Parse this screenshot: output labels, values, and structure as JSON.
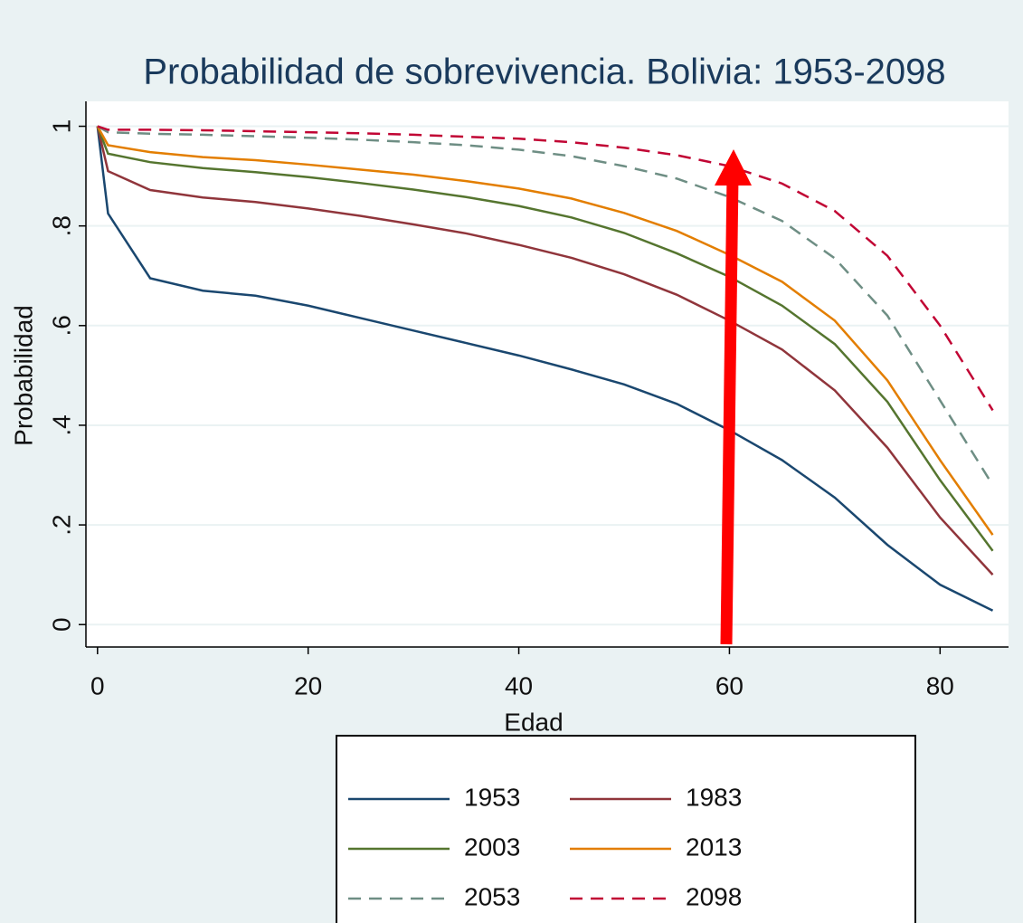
{
  "chart_data": {
    "type": "line",
    "title": "Probabilidad de sobrevivencia. Bolivia: 1953-2098",
    "x_label": "Edad",
    "y_label": "Probabilidad",
    "x": [
      0,
      1,
      5,
      10,
      15,
      20,
      25,
      30,
      35,
      40,
      45,
      50,
      55,
      60,
      65,
      70,
      75,
      80,
      85
    ],
    "series": [
      {
        "name": "1953",
        "color": "#1a476f",
        "style": "solid",
        "values": [
          1,
          0.825,
          0.695,
          0.67,
          0.66,
          0.64,
          0.615,
          0.59,
          0.565,
          0.54,
          0.512,
          0.482,
          0.443,
          0.39,
          0.33,
          0.255,
          0.16,
          0.08,
          0.028
        ]
      },
      {
        "name": "1983",
        "color": "#90353b",
        "style": "solid",
        "values": [
          1,
          0.91,
          0.872,
          0.857,
          0.848,
          0.835,
          0.82,
          0.803,
          0.785,
          0.762,
          0.736,
          0.703,
          0.662,
          0.61,
          0.552,
          0.47,
          0.355,
          0.215,
          0.1
        ]
      },
      {
        "name": "2003",
        "color": "#55752f",
        "style": "solid",
        "values": [
          1,
          0.945,
          0.928,
          0.916,
          0.908,
          0.898,
          0.886,
          0.873,
          0.858,
          0.84,
          0.817,
          0.786,
          0.745,
          0.698,
          0.64,
          0.563,
          0.447,
          0.29,
          0.148
        ]
      },
      {
        "name": "2013",
        "color": "#e37e00",
        "style": "solid",
        "values": [
          1,
          0.962,
          0.948,
          0.938,
          0.932,
          0.923,
          0.913,
          0.903,
          0.89,
          0.875,
          0.855,
          0.826,
          0.79,
          0.742,
          0.688,
          0.61,
          0.49,
          0.33,
          0.18
        ]
      },
      {
        "name": "2053",
        "color": "#6e8e84",
        "style": "dashed",
        "values": [
          1,
          0.988,
          0.985,
          0.983,
          0.98,
          0.977,
          0.973,
          0.968,
          0.962,
          0.953,
          0.94,
          0.92,
          0.895,
          0.858,
          0.81,
          0.735,
          0.62,
          0.45,
          0.28
        ]
      },
      {
        "name": "2098",
        "color": "#c10534",
        "style": "dashed",
        "values": [
          1,
          0.993,
          0.993,
          0.992,
          0.99,
          0.988,
          0.986,
          0.983,
          0.979,
          0.975,
          0.968,
          0.957,
          0.942,
          0.92,
          0.885,
          0.83,
          0.74,
          0.6,
          0.43
        ]
      }
    ],
    "xlim": [
      -1.1,
      86.5
    ],
    "xticks": [
      0,
      20,
      40,
      60,
      80
    ],
    "ylim": [
      -0.045,
      1.05
    ],
    "yticks": [
      0,
      {
        "value": 0.2,
        "label": ".2"
      },
      {
        "value": 0.4,
        "label": ".4"
      },
      {
        "value": 0.6,
        "label": ".6"
      },
      {
        "value": 0.8,
        "label": ".8"
      },
      1
    ],
    "grid": true,
    "legend": "bottom"
  }
}
